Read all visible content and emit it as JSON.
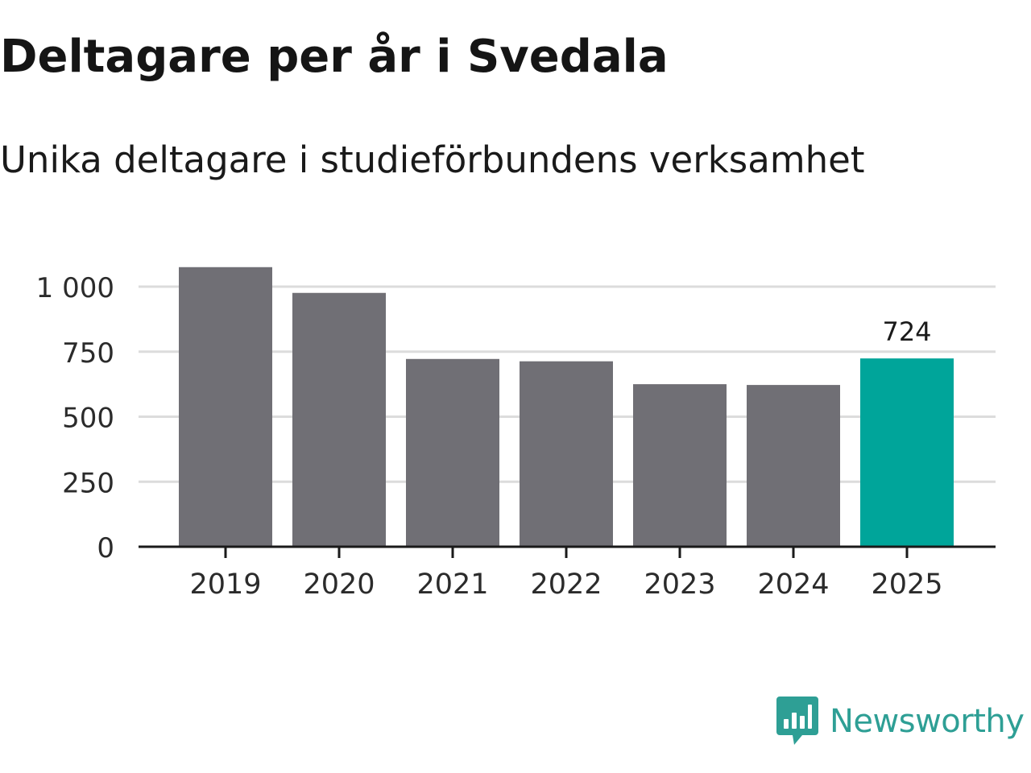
{
  "header": {
    "title": "Deltagare per år i Svedala",
    "subtitle": "Unika deltagare i studieförbundens verksamhet"
  },
  "brand": {
    "name": "Newsworthy",
    "logo_icon": "newsworthy-logo-icon",
    "color": "#2e9f95"
  },
  "colors": {
    "bar_default": "#706f75",
    "bar_highlight": "#00a59a",
    "grid": "#dcdcdc",
    "axis": "#1a1a1a",
    "tick_text": "#2b2b2b"
  },
  "chart_data": {
    "type": "bar",
    "title": "Deltagare per år i Svedala",
    "subtitle": "Unika deltagare i studieförbundens verksamhet",
    "xlabel": "",
    "ylabel": "",
    "categories": [
      "2019",
      "2020",
      "2021",
      "2022",
      "2023",
      "2024",
      "2025"
    ],
    "values": [
      1075,
      976,
      722,
      713,
      625,
      622,
      724
    ],
    "highlight_index": 6,
    "data_labels": [
      {
        "index": 6,
        "text": "724"
      }
    ],
    "ylim": [
      0,
      1000
    ],
    "yticks": [
      {
        "value": 0,
        "label": "0"
      },
      {
        "value": 250,
        "label": "250"
      },
      {
        "value": 500,
        "label": "500"
      },
      {
        "value": 750,
        "label": "750"
      },
      {
        "value": 1000,
        "label": "1 000"
      }
    ],
    "grid": true,
    "legend": "none"
  }
}
